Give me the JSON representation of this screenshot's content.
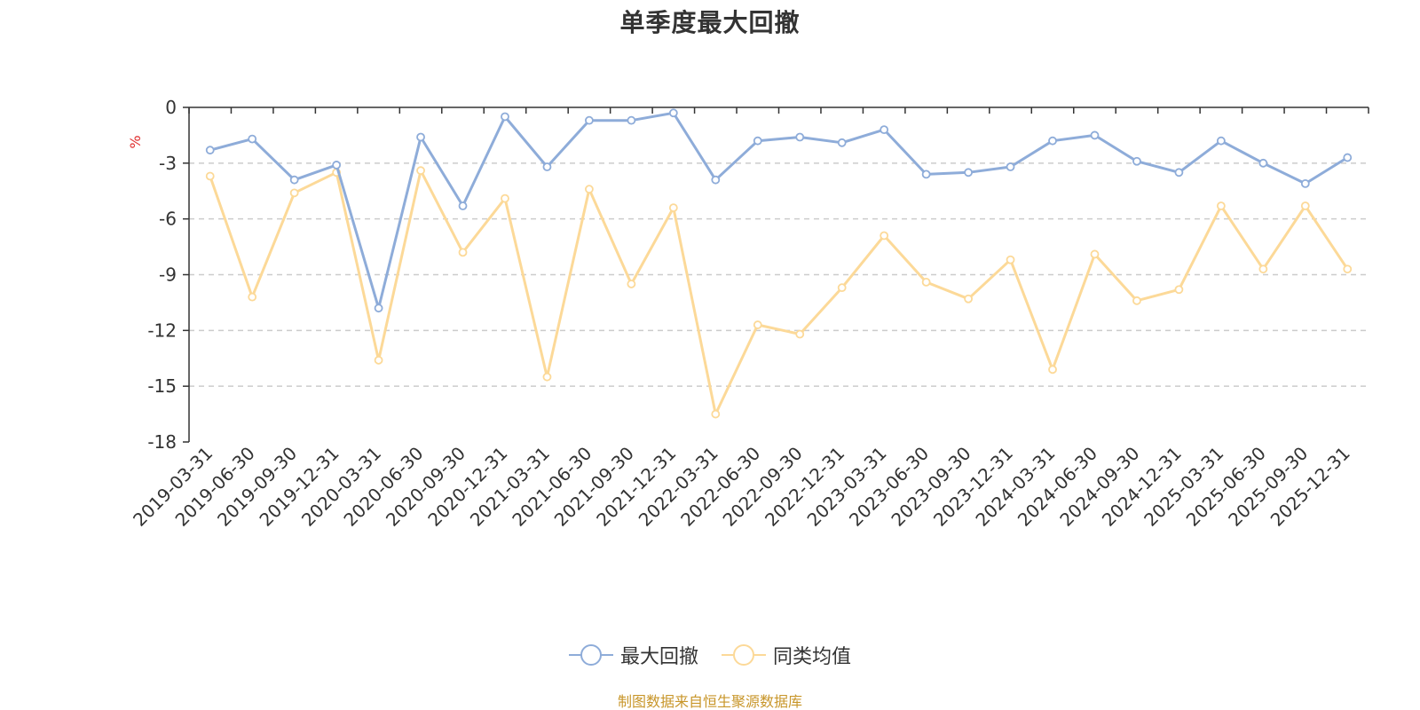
{
  "chart_data": {
    "type": "line",
    "title": "单季度最大回撤",
    "ylabel": "%",
    "ylim": [
      -18,
      0
    ],
    "yticks": [
      0,
      -3,
      -6,
      -9,
      -12,
      -15,
      -18
    ],
    "grid": true,
    "legend_position": "bottom",
    "categories": [
      "2019-03-31",
      "2019-06-30",
      "2019-09-30",
      "2019-12-31",
      "2020-03-31",
      "2020-06-30",
      "2020-09-30",
      "2020-12-31",
      "2021-03-31",
      "2021-06-30",
      "2021-09-30",
      "2021-12-31",
      "2022-03-31",
      "2022-06-30",
      "2022-09-30",
      "2022-12-31",
      "2023-03-31",
      "2023-06-30",
      "2023-09-30",
      "2023-12-31",
      "2024-03-31",
      "2024-06-30",
      "2024-09-30",
      "2024-12-31",
      "2025-03-31",
      "2025-06-30",
      "2025-09-30",
      "2025-12-31"
    ],
    "series": [
      {
        "name": "最大回撤",
        "color": "#8eacd9",
        "values": [
          -2.3,
          -1.7,
          -3.9,
          -3.1,
          -10.8,
          -1.6,
          -5.3,
          -0.5,
          -3.2,
          -0.7,
          -0.7,
          -0.3,
          -3.9,
          -1.8,
          -1.6,
          -1.9,
          -1.2,
          -3.6,
          -3.5,
          -3.2,
          -1.8,
          -1.5,
          -2.9,
          -3.5,
          -1.8,
          -3.0,
          -4.1,
          -2.7
        ]
      },
      {
        "name": "同类均值",
        "color": "#fcd998",
        "values": [
          -3.7,
          -10.2,
          -4.6,
          -3.5,
          -13.6,
          -3.4,
          -7.8,
          -4.9,
          -14.5,
          -4.4,
          -9.5,
          -5.4,
          -16.5,
          -11.7,
          -12.2,
          -9.7,
          -6.9,
          -9.4,
          -10.3,
          -8.2,
          -14.1,
          -7.9,
          -10.4,
          -9.8,
          -5.3,
          -8.7,
          -5.3,
          -8.7
        ]
      }
    ]
  },
  "source_text": "制图数据来自恒生聚源数据库",
  "colors": {
    "axis": "#333333",
    "grid": "#cccccc",
    "ylabel": "#e03030",
    "source": "#c8962a"
  }
}
